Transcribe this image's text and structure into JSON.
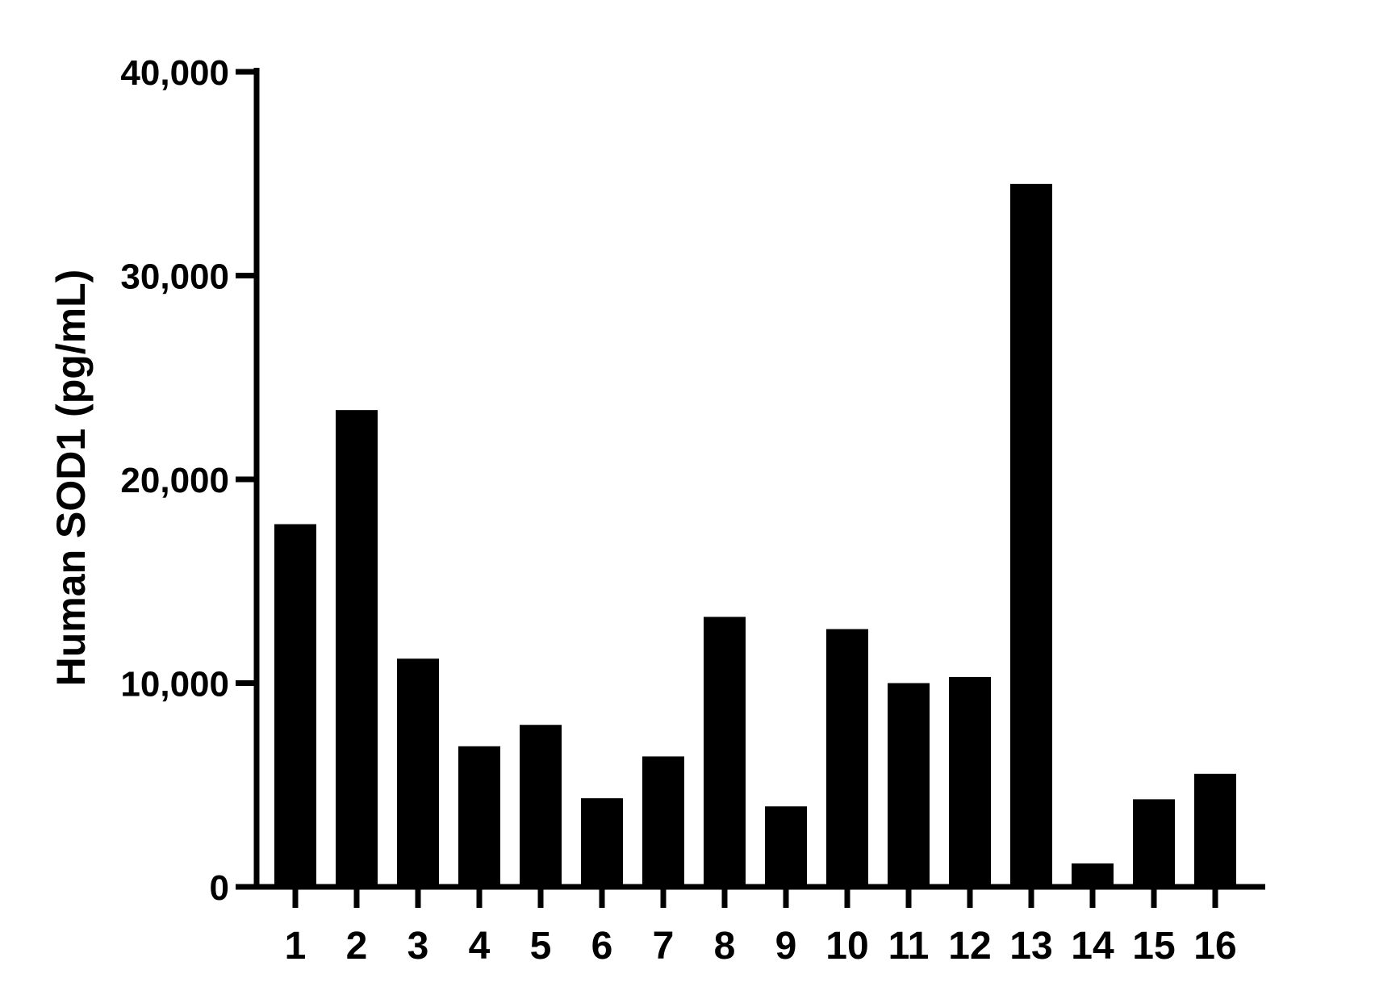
{
  "chart_data": {
    "type": "bar",
    "title": "",
    "xlabel": "",
    "ylabel": "Human SOD1 (pg/mL)",
    "categories": [
      "1",
      "2",
      "3",
      "4",
      "5",
      "6",
      "7",
      "8",
      "9",
      "10",
      "11",
      "12",
      "13",
      "14",
      "15",
      "16"
    ],
    "values": [
      17800,
      23400,
      11200,
      6900,
      7950,
      4350,
      6400,
      13250,
      3950,
      12650,
      10000,
      10300,
      34500,
      1150,
      4300,
      5550
    ],
    "ylim": [
      0,
      40000
    ],
    "yticks": [
      0,
      10000,
      20000,
      30000,
      40000
    ],
    "ytick_labels": [
      "0",
      "10,000",
      "20,000",
      "30,000",
      "40,000"
    ],
    "bar_color": "#000000",
    "grid": false,
    "legend": "none"
  }
}
